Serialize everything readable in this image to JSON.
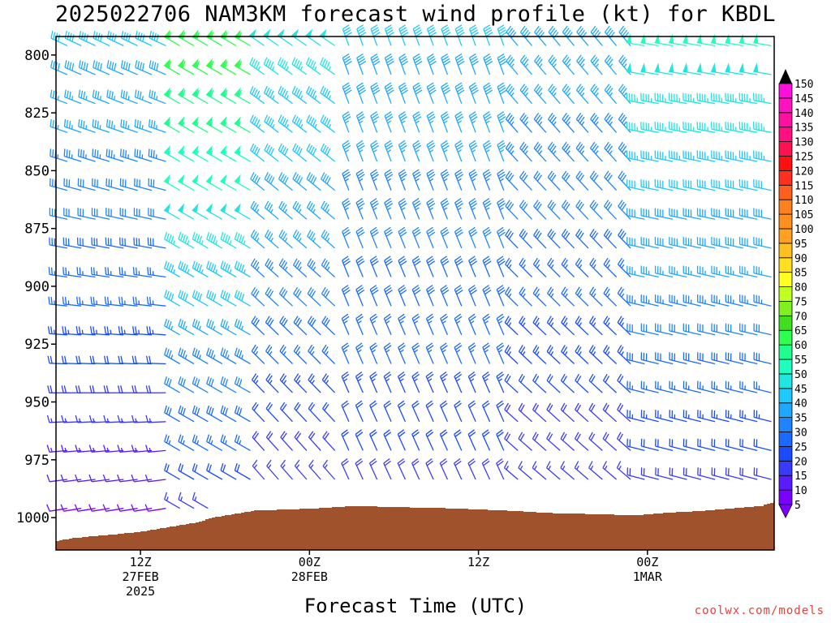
{
  "chart_data": {
    "type": "wind-barb-time-height",
    "title": "2025022706 NAM3KM forecast wind profile (kt) for KBDL",
    "xlabel": "Forecast Time (UTC)",
    "ylabel": "",
    "y_ticks": [
      800,
      825,
      850,
      875,
      900,
      925,
      950,
      975,
      1000
    ],
    "y_range": [
      1014,
      792
    ],
    "x_range_hours": [
      6,
      57
    ],
    "x_ticks": [
      {
        "hour": 12,
        "lines": [
          "12Z",
          "27FEB",
          "2025"
        ]
      },
      {
        "hour": 24,
        "lines": [
          "00Z",
          "28FEB"
        ]
      },
      {
        "hour": 36,
        "lines": [
          "12Z"
        ]
      },
      {
        "hour": 48,
        "lines": [
          "00Z",
          "1MAR"
        ]
      },
      {
        "hour": 60,
        "lines": [
          "12Z"
        ]
      }
    ],
    "legend": {
      "position": "right",
      "levels": [
        5,
        10,
        15,
        20,
        25,
        30,
        35,
        40,
        45,
        50,
        55,
        60,
        65,
        70,
        75,
        80,
        85,
        90,
        95,
        100,
        105,
        110,
        115,
        120,
        125,
        130,
        135,
        140,
        145,
        150
      ],
      "colors": [
        "#7a00ff",
        "#5a1cff",
        "#3a3aff",
        "#1a4bff",
        "#1a6aff",
        "#1f84ff",
        "#1fa8ff",
        "#1fc8ff",
        "#1fe6e0",
        "#1fffc0",
        "#1fff90",
        "#2fff50",
        "#40e020",
        "#80f020",
        "#c0ff20",
        "#ffff20",
        "#ffe020",
        "#ffc020",
        "#ffa020",
        "#ff9020",
        "#ff8020",
        "#ff6020",
        "#ff3020",
        "#ff1010",
        "#ff1050",
        "#ff1080",
        "#ff10a0",
        "#ff10c0",
        "#ff10e0",
        "#ff40ff"
      ]
    },
    "terrain_color": "#a0522d",
    "surface_pressure": [
      {
        "hour": 6,
        "p": 1010
      },
      {
        "hour": 7,
        "p": 1009
      },
      {
        "hour": 8.5,
        "p": 1008
      },
      {
        "hour": 10.5,
        "p": 1007
      },
      {
        "hour": 12,
        "p": 1006
      },
      {
        "hour": 14,
        "p": 1004
      },
      {
        "hour": 16,
        "p": 1002
      },
      {
        "hour": 17,
        "p": 1000
      },
      {
        "hour": 19,
        "p": 998
      },
      {
        "hour": 20,
        "p": 997
      },
      {
        "hour": 24.5,
        "p": 996
      },
      {
        "hour": 27,
        "p": 995
      },
      {
        "hour": 34,
        "p": 996
      },
      {
        "hour": 38,
        "p": 997
      },
      {
        "hour": 41,
        "p": 998
      },
      {
        "hour": 47,
        "p": 999
      },
      {
        "hour": 49,
        "p": 998
      },
      {
        "hour": 52,
        "p": 997
      },
      {
        "hour": 56,
        "p": 995
      },
      {
        "hour": 57,
        "p": 993
      }
    ],
    "wind_regimes": [
      {
        "from_hour": 6,
        "to_hour": 14,
        "dir_low": 260,
        "dir_high": 295,
        "spd_low": 8,
        "spd_high": 40
      },
      {
        "from_hour": 14,
        "to_hour": 20,
        "dir_low": 300,
        "dir_high": 300,
        "spd_low": 15,
        "spd_high": 62
      },
      {
        "from_hour": 20,
        "to_hour": 26,
        "dir_low": 320,
        "dir_high": 305,
        "spd_low": 12,
        "spd_high": 48
      },
      {
        "from_hour": 26,
        "to_hour": 38,
        "dir_low": 335,
        "dir_high": 340,
        "spd_low": 15,
        "spd_high": 40
      },
      {
        "from_hour": 38,
        "to_hour": 47,
        "dir_low": 310,
        "dir_high": 320,
        "spd_low": 12,
        "spd_high": 38
      },
      {
        "from_hour": 47,
        "to_hour": 57,
        "dir_low": 285,
        "dir_high": 280,
        "spd_low": 15,
        "spd_high": 50
      }
    ]
  },
  "credit": "coolwx.com/models"
}
